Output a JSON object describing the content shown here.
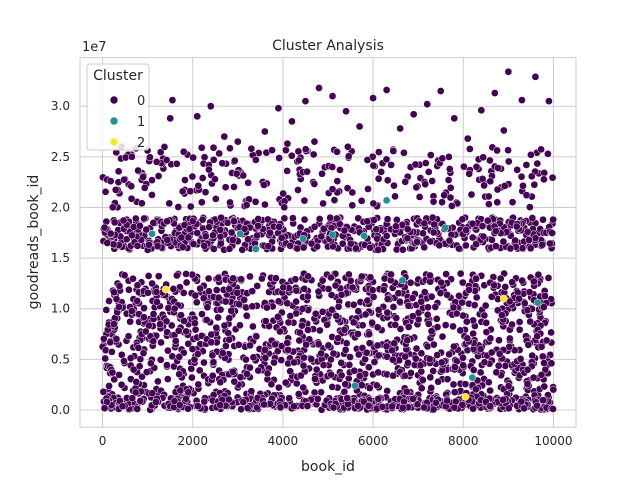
{
  "chart_data": {
    "type": "scatter",
    "title": "Cluster Analysis",
    "xlabel": "book_id",
    "ylabel": "goodreads_book_id",
    "y_offset_label": "1e7",
    "xlim": [
      -500,
      10500
    ],
    "ylim": [
      -1700000,
      34800000
    ],
    "x_ticks": [
      0,
      2000,
      4000,
      6000,
      8000,
      10000
    ],
    "x_tick_labels": [
      "0",
      "2000",
      "4000",
      "6000",
      "8000",
      "10000"
    ],
    "y_ticks": [
      0,
      5000000,
      10000000,
      15000000,
      20000000,
      25000000,
      30000000
    ],
    "y_tick_labels": [
      "0.0",
      "0.5",
      "1.0",
      "1.5",
      "2.0",
      "2.5",
      "3.0"
    ],
    "grid": true,
    "legend": {
      "title": "Cluster",
      "placement": "top-left",
      "entries": [
        {
          "label": "0",
          "color": "#440154"
        },
        {
          "label": "1",
          "color": "#21918c"
        },
        {
          "label": "2",
          "color": "#fde725"
        }
      ]
    },
    "series": [
      {
        "name": "0",
        "color": "#440154",
        "note_points": "dense cloud of approx. 10000 books; representative sample listed",
        "x": [
          180,
          420,
          650,
          900,
          1200,
          1500,
          1800,
          2100,
          2400,
          2700,
          3000,
          3300,
          3600,
          3900,
          4200,
          4500,
          4800,
          5100,
          5400,
          5700,
          6000,
          6300,
          6600,
          6900,
          7200,
          7500,
          7800,
          8100,
          8400,
          8700,
          9000,
          9300,
          9600,
          9900,
          9990,
          4700,
          5200,
          6400,
          7700,
          8900,
          9500,
          1550,
          2200,
          3400,
          4100
        ],
        "y": [
          22600000,
          26000000,
          25000000,
          23000000,
          24500000,
          28800000,
          25500000,
          29000000,
          30000000,
          27000000,
          26500000,
          25800000,
          27500000,
          29800000,
          28500000,
          30500000,
          31800000,
          31000000,
          29500000,
          28000000,
          30800000,
          31600000,
          27800000,
          29200000,
          30200000,
          31500000,
          28800000,
          26800000,
          29600000,
          31300000,
          33400000,
          30600000,
          32900000,
          30500000,
          100000,
          26500000,
          25500000,
          24200000,
          23800000,
          27600000,
          25200000,
          30600000,
          25900000,
          24700000,
          26300000
        ]
      },
      {
        "name": "1",
        "color": "#21918c",
        "x": [
          1100,
          3050,
          3400,
          4450,
          5100,
          5800,
          6300,
          6650,
          7600,
          8200,
          9650,
          5600
        ],
        "y": [
          17400000,
          17400000,
          15900000,
          16900000,
          17300000,
          17200000,
          20700000,
          12800000,
          18000000,
          3200000,
          10600000,
          2400000
        ],
        "note_points": "representative sample of visible teal points"
      },
      {
        "name": "2",
        "color": "#fde725",
        "x": [
          1400,
          8050,
          8900
        ],
        "y": [
          11900000,
          1300000,
          11000000
        ]
      }
    ]
  }
}
